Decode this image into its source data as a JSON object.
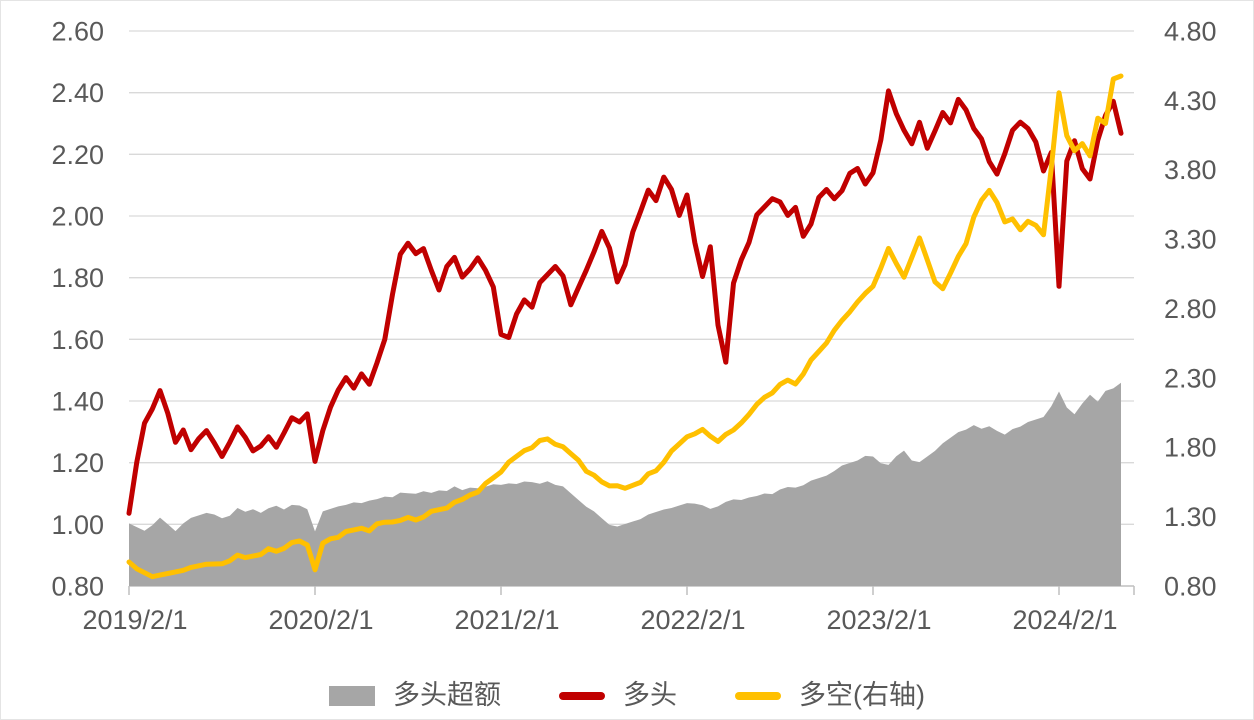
{
  "colors": {
    "excess_area": "#a6a6a6",
    "long_line": "#c00000",
    "longshort_line": "#ffc000",
    "gridline": "#d9d9d9",
    "axis_line": "#bfbfbf",
    "label_text": "#595959",
    "background": "#ffffff"
  },
  "legend": {
    "excess_label": "多头超额",
    "long_label": "多头",
    "longshort_label": "多空(右轴)"
  },
  "chart_data": {
    "type": "line",
    "title": "",
    "xlabel": "",
    "ylabel_left": "",
    "ylabel_right": "",
    "grid": true,
    "legend_position": "bottom",
    "x_axis": {
      "tick_labels": [
        "2019/2/1",
        "2020/2/1",
        "2021/2/1",
        "2022/2/1",
        "2023/2/1",
        "2024/2/1"
      ],
      "tick_month_positions": [
        0,
        12,
        24,
        36,
        48,
        60
      ],
      "months_start": 0,
      "months_end": 64,
      "months_step": 0.5,
      "note": "x values are months after 2019/2/1, sampled every half month; data ends ~2024/6"
    },
    "y_axis_left": {
      "min": 0.8,
      "max": 2.6,
      "step": 0.2,
      "tick_labels": [
        "0.80",
        "1.00",
        "1.20",
        "1.40",
        "1.60",
        "1.80",
        "2.00",
        "2.20",
        "2.40",
        "2.60"
      ]
    },
    "y_axis_right": {
      "min": 0.8,
      "max": 4.8,
      "step": 0.5,
      "tick_labels": [
        "0.80",
        "1.30",
        "1.80",
        "2.30",
        "2.80",
        "3.30",
        "3.80",
        "4.30",
        "4.80"
      ]
    },
    "series": [
      {
        "name": "多头超额",
        "type": "area",
        "axis": "left",
        "color": "#a6a6a6",
        "values": [
          1.0,
          0.99,
          0.98,
          1.0,
          1.02,
          1.0,
          0.98,
          1.0,
          1.02,
          1.03,
          1.04,
          1.03,
          1.02,
          1.03,
          1.05,
          1.04,
          1.05,
          1.04,
          1.05,
          1.06,
          1.05,
          1.06,
          1.06,
          1.05,
          0.98,
          1.04,
          1.05,
          1.06,
          1.06,
          1.07,
          1.07,
          1.08,
          1.08,
          1.09,
          1.09,
          1.1,
          1.1,
          1.1,
          1.11,
          1.1,
          1.11,
          1.11,
          1.12,
          1.11,
          1.12,
          1.12,
          1.12,
          1.13,
          1.13,
          1.13,
          1.13,
          1.14,
          1.14,
          1.13,
          1.14,
          1.13,
          1.12,
          1.1,
          1.08,
          1.06,
          1.04,
          1.02,
          1.0,
          0.99,
          1.0,
          1.01,
          1.02,
          1.03,
          1.04,
          1.05,
          1.05,
          1.06,
          1.07,
          1.07,
          1.06,
          1.05,
          1.06,
          1.07,
          1.08,
          1.08,
          1.09,
          1.09,
          1.1,
          1.1,
          1.11,
          1.12,
          1.12,
          1.13,
          1.14,
          1.15,
          1.16,
          1.17,
          1.19,
          1.2,
          1.21,
          1.22,
          1.22,
          1.2,
          1.19,
          1.22,
          1.24,
          1.21,
          1.2,
          1.22,
          1.24,
          1.26,
          1.28,
          1.3,
          1.31,
          1.32,
          1.31,
          1.32,
          1.3,
          1.29,
          1.31,
          1.32,
          1.33,
          1.34,
          1.35,
          1.38,
          1.43,
          1.38,
          1.36,
          1.39,
          1.42,
          1.4,
          1.43,
          1.44,
          1.46
        ]
      },
      {
        "name": "多头",
        "type": "line",
        "axis": "left",
        "color": "#c00000",
        "values": [
          1.03,
          1.2,
          1.33,
          1.38,
          1.43,
          1.36,
          1.27,
          1.3,
          1.24,
          1.28,
          1.31,
          1.26,
          1.22,
          1.27,
          1.31,
          1.28,
          1.24,
          1.26,
          1.28,
          1.25,
          1.3,
          1.34,
          1.33,
          1.36,
          1.21,
          1.3,
          1.38,
          1.44,
          1.47,
          1.44,
          1.49,
          1.46,
          1.52,
          1.6,
          1.75,
          1.87,
          1.91,
          1.88,
          1.9,
          1.82,
          1.76,
          1.84,
          1.86,
          1.8,
          1.83,
          1.87,
          1.82,
          1.77,
          1.62,
          1.6,
          1.68,
          1.73,
          1.71,
          1.78,
          1.81,
          1.84,
          1.8,
          1.71,
          1.77,
          1.83,
          1.88,
          1.95,
          1.9,
          1.78,
          1.84,
          1.95,
          2.02,
          2.08,
          2.05,
          2.13,
          2.08,
          2.0,
          2.07,
          1.92,
          1.8,
          1.9,
          1.65,
          1.52,
          1.78,
          1.86,
          1.92,
          2.0,
          2.03,
          2.06,
          2.04,
          2.0,
          2.03,
          1.94,
          1.97,
          2.06,
          2.09,
          2.05,
          2.08,
          2.14,
          2.16,
          2.1,
          2.14,
          2.25,
          2.4,
          2.33,
          2.28,
          2.24,
          2.3,
          2.22,
          2.28,
          2.33,
          2.3,
          2.38,
          2.35,
          2.28,
          2.25,
          2.18,
          2.13,
          2.2,
          2.28,
          2.31,
          2.28,
          2.24,
          2.15,
          2.2,
          1.77,
          2.18,
          2.25,
          2.15,
          2.12,
          2.25,
          2.32,
          2.37,
          2.27
        ]
      },
      {
        "name": "多空(右轴)",
        "type": "line",
        "axis": "right",
        "color": "#ffc000",
        "values": [
          0.96,
          0.92,
          0.9,
          0.88,
          0.87,
          0.89,
          0.91,
          0.9,
          0.93,
          0.95,
          0.97,
          0.95,
          0.96,
          0.99,
          1.01,
          1.0,
          1.02,
          1.04,
          1.06,
          1.05,
          1.08,
          1.1,
          1.12,
          1.1,
          0.93,
          1.1,
          1.14,
          1.16,
          1.18,
          1.2,
          1.22,
          1.21,
          1.24,
          1.26,
          1.27,
          1.26,
          1.29,
          1.28,
          1.31,
          1.33,
          1.35,
          1.37,
          1.39,
          1.42,
          1.46,
          1.49,
          1.53,
          1.58,
          1.63,
          1.68,
          1.73,
          1.78,
          1.81,
          1.84,
          1.86,
          1.83,
          1.79,
          1.75,
          1.71,
          1.64,
          1.59,
          1.55,
          1.53,
          1.51,
          1.5,
          1.53,
          1.56,
          1.6,
          1.63,
          1.7,
          1.76,
          1.82,
          1.88,
          1.91,
          1.92,
          1.88,
          1.85,
          1.88,
          1.92,
          1.98,
          2.05,
          2.1,
          2.16,
          2.2,
          2.24,
          2.28,
          2.26,
          2.34,
          2.42,
          2.49,
          2.56,
          2.63,
          2.71,
          2.78,
          2.86,
          2.9,
          2.96,
          3.1,
          3.22,
          3.12,
          3.03,
          3.18,
          3.3,
          3.15,
          3.0,
          2.93,
          3.05,
          3.18,
          3.28,
          3.45,
          3.58,
          3.66,
          3.55,
          3.42,
          3.45,
          3.38,
          3.42,
          3.4,
          3.34,
          3.8,
          4.35,
          4.05,
          3.95,
          3.98,
          3.9,
          4.18,
          4.12,
          4.45,
          4.48
        ]
      }
    ]
  }
}
